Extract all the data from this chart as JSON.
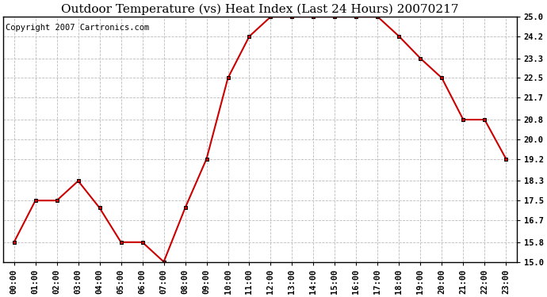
{
  "title": "Outdoor Temperature (vs) Heat Index (Last 24 Hours) 20070217",
  "copyright": "Copyright 2007 Cartronics.com",
  "x_labels": [
    "00:00",
    "01:00",
    "02:00",
    "03:00",
    "04:00",
    "05:00",
    "06:00",
    "07:00",
    "08:00",
    "09:00",
    "10:00",
    "11:00",
    "12:00",
    "13:00",
    "14:00",
    "15:00",
    "16:00",
    "17:00",
    "18:00",
    "19:00",
    "20:00",
    "21:00",
    "22:00",
    "23:00"
  ],
  "y_values": [
    15.8,
    17.5,
    17.5,
    18.3,
    17.2,
    15.8,
    15.8,
    15.0,
    17.2,
    19.2,
    22.5,
    24.2,
    25.0,
    25.0,
    25.0,
    25.0,
    25.0,
    25.0,
    24.2,
    23.3,
    22.5,
    20.8,
    20.8,
    19.2
  ],
  "line_color": "#cc0000",
  "marker_color": "#000000",
  "background_color": "#ffffff",
  "plot_bg_color": "#ffffff",
  "grid_color": "#bbbbbb",
  "ylim": [
    15.0,
    25.0
  ],
  "yticks": [
    15.0,
    15.8,
    16.7,
    17.5,
    18.3,
    19.2,
    20.0,
    20.8,
    21.7,
    22.5,
    23.3,
    24.2,
    25.0
  ],
  "title_fontsize": 11,
  "copyright_fontsize": 7.5,
  "tick_fontsize": 7.5
}
